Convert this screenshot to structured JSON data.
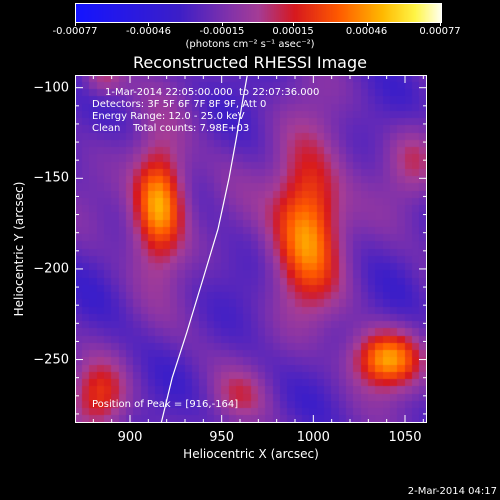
{
  "colorbar": {
    "ticks": [
      "-0.00077",
      "-0.00046",
      "-0.00015",
      "0.00015",
      "0.00046",
      "0.00077"
    ],
    "units": "(photons cm⁻² s⁻¹ asec⁻²)",
    "min": -0.00077,
    "max": 0.00077
  },
  "chart_data": {
    "type": "heatmap",
    "title": "Reconstructed RHESSI Image",
    "xlabel": "Heliocentric X (arcsec)",
    "ylabel": "Heliocentric Y (arcsec)",
    "xlim": [
      870,
      1062
    ],
    "ylim": [
      -285,
      -93
    ],
    "xticks": [
      900,
      950,
      1000,
      1050
    ],
    "yticks": [
      -100,
      -150,
      -200,
      -250
    ],
    "colormap": "blue-purple-red-yellow-white",
    "value_range": [
      -0.00077,
      0.00077
    ],
    "peak": [
      916,
      -164
    ],
    "sources": [
      {
        "x": 916,
        "y": -164,
        "sx": 10,
        "sy": 22,
        "amp": 1.0
      },
      {
        "x": 997,
        "y": -175,
        "sx": 13,
        "sy": 30,
        "amp": 0.92
      },
      {
        "x": 1040,
        "y": -250,
        "sx": 13,
        "sy": 11,
        "amp": 0.85
      },
      {
        "x": 884,
        "y": -270,
        "sx": 10,
        "sy": 13,
        "amp": 0.5
      },
      {
        "x": 885,
        "y": -95,
        "sx": 8,
        "sy": 8,
        "amp": 0.4
      },
      {
        "x": 960,
        "y": -270,
        "sx": 10,
        "sy": 10,
        "amp": 0.25
      },
      {
        "x": 1055,
        "y": -140,
        "sx": 10,
        "sy": 14,
        "amp": 0.3
      }
    ],
    "limb_x": [
      917,
      923,
      931,
      940,
      948,
      954,
      958,
      961,
      964
    ],
    "limb_y": [
      -285,
      -260,
      -235,
      -205,
      -178,
      -150,
      -128,
      -110,
      -93
    ]
  },
  "annotation": {
    "time_range": "1-Mar-2014 22:05:00.000  to 22:07:36.000",
    "detectors": "Detectors: 3F 5F 6F 7F 8F 9F, Att 0",
    "energy": "Energy Range: 12.0 - 25.0 keV",
    "clean": "Clean    Total counts: 7.98E+03",
    "peak": "Position of Peak = [916,-164]"
  },
  "footer": {
    "date": "2-Mar-2014 04:17"
  }
}
